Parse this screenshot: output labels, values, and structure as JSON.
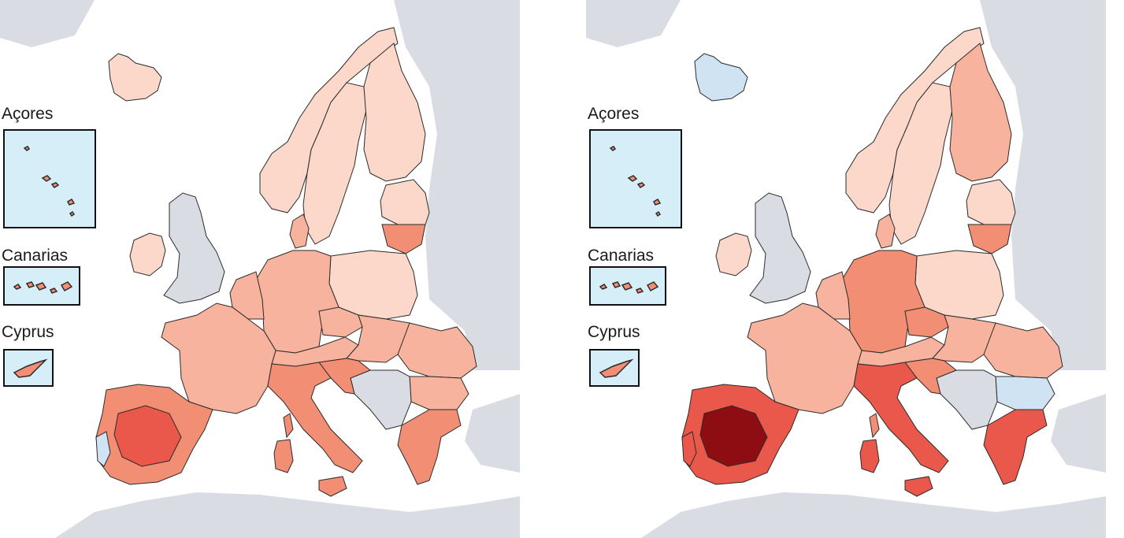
{
  "colors": {
    "sea": "#ffffff",
    "non_eu_land": "#d9dde3",
    "inset_sea": "#d6eef8",
    "border": "#2b2b2b",
    "class_cooler": "#cfe3f2",
    "class_1": "#fbd8c9",
    "class_2": "#f7b39d",
    "class_3": "#f28e73",
    "class_4": "#e9584a",
    "class_5": "#c91d23",
    "class_6": "#8e0d12"
  },
  "maps": [
    {
      "insets": [
        {
          "label": "Açores"
        },
        {
          "label": "Canarias"
        },
        {
          "label": "Cyprus"
        }
      ],
      "region_classes": {
        "iceland": "class_1",
        "ireland": "class_1",
        "uk": "non_eu",
        "norway": "class_1",
        "sweden": "class_1",
        "finland": "class_1",
        "baltics": "class_1",
        "lithuania": "class_3",
        "poland": "class_1",
        "germany": "class_2",
        "france": "class_2",
        "benelux": "class_2",
        "czechia": "class_2",
        "austria": "class_2",
        "hungary": "class_2",
        "romania": "class_2",
        "bulgaria": "class_2",
        "balkans": "non_eu",
        "croatia": "class_3",
        "italy": "class_3",
        "sardinia": "class_3",
        "sicily": "class_3",
        "corsica": "class_3",
        "iberia": "class_3",
        "iberia_core": "class_4",
        "greece": "class_3",
        "portugal_coast": "class_cooler",
        "cyprus": "class_3",
        "azores": "class_3",
        "canarias": "class_3"
      }
    },
    {
      "insets": [
        {
          "label": "Açores"
        },
        {
          "label": "Canarias"
        },
        {
          "label": "Cyprus"
        }
      ],
      "region_classes": {
        "iceland": "class_cooler",
        "ireland": "class_1",
        "uk": "non_eu",
        "norway": "class_1",
        "sweden": "class_1",
        "finland": "class_2",
        "baltics": "class_1",
        "lithuania": "class_3",
        "poland": "class_1",
        "germany": "class_3",
        "france": "class_2",
        "benelux": "class_2",
        "czechia": "class_3",
        "austria": "class_2",
        "hungary": "class_2",
        "romania": "class_2",
        "bulgaria": "class_cooler",
        "balkans": "non_eu",
        "croatia": "class_3",
        "italy": "class_4",
        "sardinia": "class_4",
        "sicily": "class_4",
        "corsica": "class_3",
        "iberia": "class_4",
        "iberia_core": "class_6",
        "greece": "class_4",
        "portugal_coast": "class_4",
        "cyprus": "class_3",
        "azores": "class_3",
        "canarias": "class_3"
      }
    }
  ]
}
